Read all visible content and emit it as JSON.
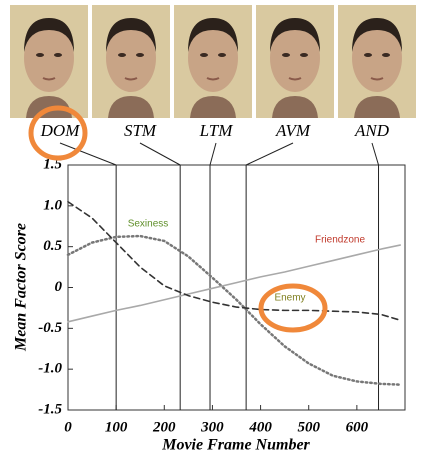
{
  "chart_data": {
    "type": "line",
    "xlabel": "Movie Frame Number",
    "ylabel": "Mean Factor Score",
    "x": [
      0,
      50,
      100,
      150,
      200,
      250,
      300,
      350,
      400,
      450,
      500,
      550,
      600,
      650,
      690
    ],
    "series": [
      {
        "name": "Sexiness",
        "color": "#777777",
        "label_color": "#5f8f2a",
        "dash": "dotted",
        "values": [
          0.4,
          0.55,
          0.62,
          0.63,
          0.57,
          0.38,
          0.12,
          -0.15,
          -0.45,
          -0.72,
          -0.93,
          -1.08,
          -1.15,
          -1.18,
          -1.19
        ]
      },
      {
        "name": "Friendzone",
        "color": "#a9a9a9",
        "label_color": "#c0392b",
        "dash": "solid",
        "values": [
          -0.42,
          -0.35,
          -0.28,
          -0.22,
          -0.15,
          -0.08,
          -0.01,
          0.06,
          0.13,
          0.19,
          0.26,
          0.33,
          0.4,
          0.47,
          0.52
        ]
      },
      {
        "name": "Enemy",
        "color": "#333333",
        "label_color": "#7f7f1f",
        "dash": "dashed",
        "values": [
          1.05,
          0.85,
          0.55,
          0.25,
          0.02,
          -0.1,
          -0.18,
          -0.24,
          -0.27,
          -0.28,
          -0.28,
          -0.29,
          -0.3,
          -0.33,
          -0.4
        ]
      }
    ],
    "markers": [
      {
        "label": "DOM",
        "x": 100
      },
      {
        "label": "STM",
        "x": 233
      },
      {
        "label": "LTM",
        "x": 295
      },
      {
        "label": "AVM",
        "x": 370
      },
      {
        "label": "AND",
        "x": 645
      }
    ],
    "xlim": [
      0,
      700
    ],
    "xticks": [
      0,
      100,
      200,
      300,
      400,
      500,
      600
    ],
    "ylim": [
      -1.5,
      1.5
    ],
    "yticks": [
      -1.5,
      {
        "value": -1,
        "label": "-1.0"
      },
      -0.5,
      0,
      0.5,
      {
        "value": 1,
        "label": "1.0"
      },
      1.5
    ]
  }
}
